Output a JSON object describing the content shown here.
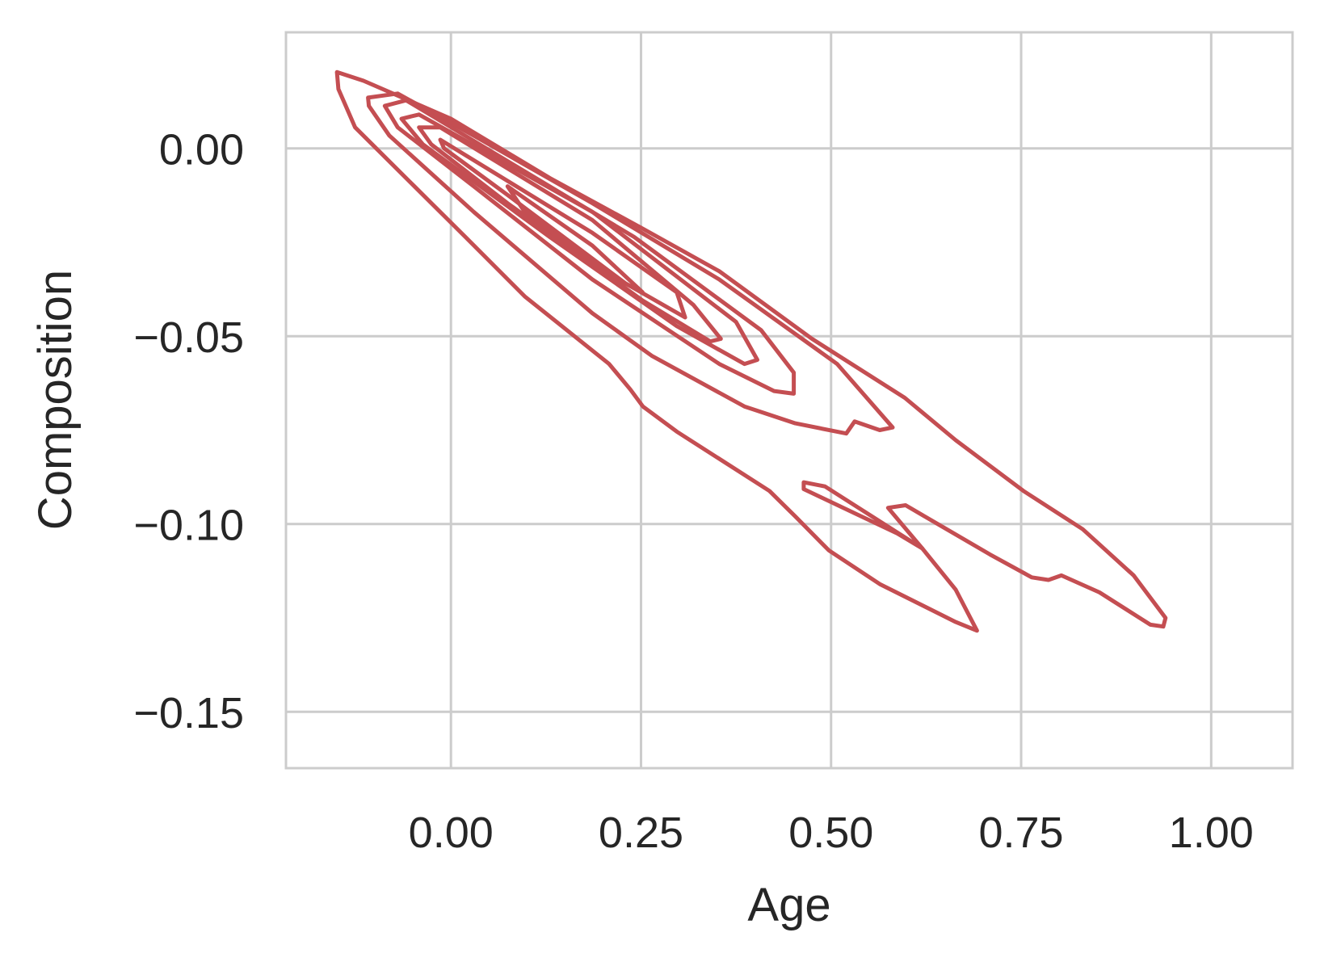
{
  "chart_data": {
    "type": "contour",
    "xlabel": "Age",
    "ylabel": "Composition",
    "xlim": [
      -0.217,
      1.107
    ],
    "ylim": [
      -0.165,
      0.0309
    ],
    "xticks": [
      {
        "value": 0,
        "label": "0.00"
      },
      {
        "value": 0.25,
        "label": "0.25"
      },
      {
        "value": 0.5,
        "label": "0.50"
      },
      {
        "value": 0.75,
        "label": "0.75"
      },
      {
        "value": 1,
        "label": "1.00"
      }
    ],
    "yticks": [
      {
        "value": 0,
        "label": "0.00"
      },
      {
        "value": -0.05,
        "label": "−0.05"
      },
      {
        "value": -0.1,
        "label": "−0.10"
      },
      {
        "value": -0.15,
        "label": "−0.15"
      }
    ],
    "grid": true,
    "series": [
      {
        "color": "#c44e52",
        "x": [
          -0.15,
          -0.115,
          0,
          0.13,
          0.2525,
          0.353,
          0.475,
          0.597,
          0.664,
          0.753,
          0.831,
          0.898,
          0.94,
          0.937,
          0.92,
          0.853,
          0.803,
          0.786,
          0.764,
          0.709,
          0.642,
          0.598,
          0.575,
          0.62,
          0.664,
          0.692,
          0.664,
          0.564,
          0.497,
          0.453,
          0.419,
          0.297,
          0.2525,
          0.236,
          0.208,
          0.097,
          0.019,
          -0.048,
          -0.126,
          -0.148
        ],
        "y": [
          0.0203,
          0.018,
          0.0079,
          -0.0079,
          -0.0214,
          -0.0327,
          -0.0507,
          -0.0664,
          -0.0777,
          -0.0912,
          -0.1014,
          -0.1137,
          -0.125,
          -0.1273,
          -0.1268,
          -0.1182,
          -0.1137,
          -0.1149,
          -0.1142,
          -0.1081,
          -0.1002,
          -0.095,
          -0.0957,
          -0.1065,
          -0.1175,
          -0.1284,
          -0.1261,
          -0.116,
          -0.107,
          -0.098,
          -0.0912,
          -0.0754,
          -0.0687,
          -0.0642,
          -0.0574,
          -0.0394,
          -0.0236,
          -0.0101,
          0.0056,
          0.0158
        ]
      },
      {
        "color": "#c44e52",
        "x": [
          0.464,
          0.492,
          0.62,
          0.587,
          0.464
        ],
        "y": [
          -0.0889,
          -0.09,
          -0.1065,
          -0.1025,
          -0.0907
        ]
      },
      {
        "color": "#c44e52",
        "x": [
          -0.109,
          -0.07,
          0.03,
          0.186,
          0.353,
          0.508,
          0.581,
          0.564,
          0.531,
          0.52,
          0.453,
          0.386,
          0.264,
          0.186,
          0.03,
          -0.081,
          -0.108
        ],
        "y": [
          0.0135,
          0.0146,
          0.0034,
          -0.0146,
          -0.0349,
          -0.0574,
          -0.0743,
          -0.075,
          -0.0727,
          -0.0759,
          -0.0732,
          -0.0687,
          -0.0552,
          -0.0439,
          -0.0169,
          0.0034,
          0.0113
        ]
      },
      {
        "color": "#c44e52",
        "x": [
          -0.087,
          -0.059,
          0.0745,
          0.241,
          0.408,
          0.451,
          0.451,
          0.425,
          0.353,
          0.186,
          0.03,
          -0.07
        ],
        "y": [
          0.0113,
          0.0128,
          -0.0034,
          -0.0236,
          -0.0484,
          -0.0597,
          -0.0653,
          -0.0646,
          -0.0574,
          -0.0349,
          -0.0101,
          0.0056
        ]
      },
      {
        "color": "#c44e52",
        "x": [
          -0.065,
          -0.042,
          0.186,
          0.375,
          0.403,
          0.386,
          0.297,
          0.13,
          -0.037
        ],
        "y": [
          0.0079,
          0.009,
          -0.0169,
          -0.0462,
          -0.0563,
          -0.0574,
          -0.0473,
          -0.0236,
          0.0011
        ]
      },
      {
        "color": "#c44e52",
        "x": [
          -0.042,
          -0.014,
          0.186,
          0.319,
          0.355,
          0.341,
          0.252,
          0.0745,
          -0.026
        ],
        "y": [
          0.0056,
          0.0056,
          -0.0191,
          -0.0417,
          -0.0507,
          -0.0514,
          -0.0405,
          -0.0146,
          0.0011
        ]
      },
      {
        "color": "#c44e52",
        "x": [
          -0.014,
          0.186,
          0.297,
          0.308,
          0.23,
          0.0745,
          -0.009
        ],
        "y": [
          0.0023,
          -0.0225,
          -0.0383,
          -0.045,
          -0.036,
          -0.0124,
          0
        ]
      },
      {
        "color": "#c44e52",
        "x": [
          0.0745,
          0.186,
          0.252,
          0.208,
          0.097
        ],
        "y": [
          -0.0101,
          -0.0259,
          -0.0383,
          -0.0338,
          -0.0169
        ]
      }
    ]
  }
}
